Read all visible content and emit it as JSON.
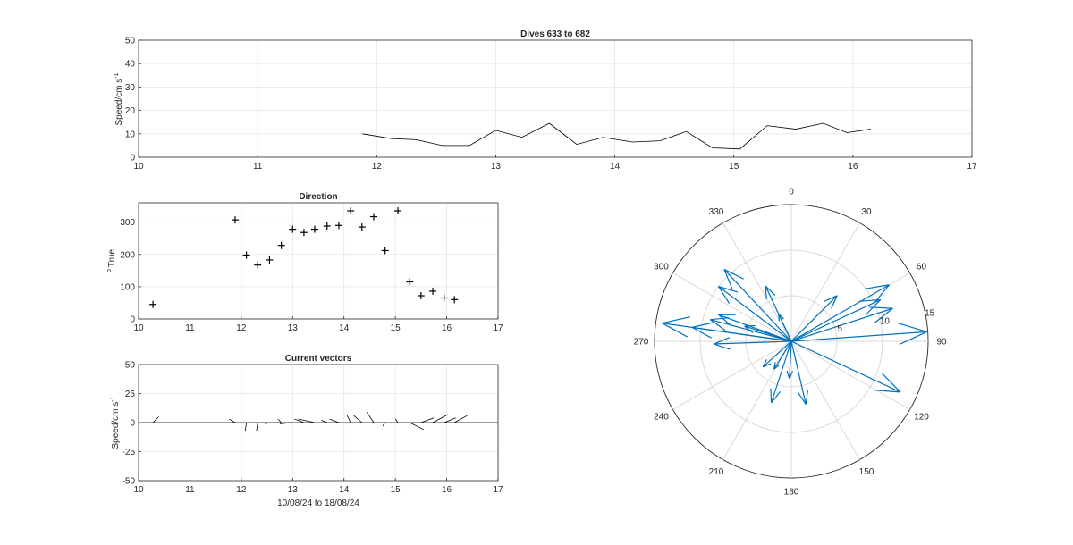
{
  "chart_data": [
    {
      "type": "line",
      "title": "Dives 633 to 682",
      "xlabel": "",
      "ylabel": "Speed/cm s",
      "ylabel_exp": "-1",
      "xlim": [
        10,
        17
      ],
      "ylim": [
        0,
        50
      ],
      "x_ticks": [
        10,
        11,
        12,
        13,
        14,
        15,
        16,
        17
      ],
      "y_ticks": [
        0,
        10,
        20,
        30,
        40,
        50
      ],
      "grid": true,
      "series": [
        {
          "x": [
            11.88,
            12.12,
            12.33,
            12.55,
            12.78,
            13.0,
            13.22,
            13.45,
            13.68,
            13.9,
            14.15,
            14.38,
            14.6,
            14.82,
            15.05,
            15.28,
            15.52,
            15.75,
            15.95,
            16.15
          ],
          "y": [
            10,
            8,
            7.5,
            5,
            5,
            11.5,
            8.5,
            14.5,
            5.5,
            8.5,
            6.5,
            7,
            11,
            4,
            3.5,
            13.5,
            12,
            14.5,
            10.5,
            12
          ]
        }
      ],
      "color": "#000000"
    },
    {
      "type": "scatter",
      "title": "Direction",
      "xlabel": "",
      "ylabel": "True",
      "ylabel_prefix": "o",
      "xlim": [
        10,
        17
      ],
      "ylim": [
        0,
        360
      ],
      "x_ticks": [
        10,
        11,
        12,
        13,
        14,
        15,
        16,
        17
      ],
      "y_ticks": [
        0,
        100,
        200,
        300
      ],
      "grid": true,
      "marker": "+",
      "series": [
        {
          "x": [
            10.28,
            11.88,
            12.1,
            12.32,
            12.55,
            12.78,
            13.0,
            13.22,
            13.43,
            13.67,
            13.9,
            14.13,
            14.35,
            14.58,
            14.8,
            15.05,
            15.28,
            15.5,
            15.73,
            15.95,
            16.15
          ],
          "y": [
            45,
            307,
            198,
            167,
            183,
            228,
            278,
            268,
            278,
            288,
            290,
            335,
            285,
            317,
            212,
            335,
            115,
            72,
            86,
            65,
            60
          ]
        }
      ]
    },
    {
      "type": "line",
      "title": "Current vectors",
      "xlabel": "10/08/24 to 18/08/24",
      "ylabel": "Speed/cm s",
      "ylabel_exp": "-1",
      "xlim": [
        10,
        17
      ],
      "ylim": [
        -50,
        50
      ],
      "x_ticks": [
        10,
        11,
        12,
        13,
        14,
        15,
        16,
        17
      ],
      "y_ticks": [
        -50,
        -25,
        0,
        25,
        50
      ],
      "grid": true,
      "vectors": [
        {
          "x": 10.28,
          "u": 5,
          "v": 5
        },
        {
          "x": 11.88,
          "u": -5,
          "v": 3
        },
        {
          "x": 12.1,
          "u": -1,
          "v": -7
        },
        {
          "x": 12.32,
          "u": -1,
          "v": -7
        },
        {
          "x": 12.55,
          "u": -4,
          "v": -1
        },
        {
          "x": 12.78,
          "u": -3,
          "v": 3
        },
        {
          "x": 13.0,
          "u": -11,
          "v": -1
        },
        {
          "x": 13.22,
          "u": -8,
          "v": 3
        },
        {
          "x": 13.43,
          "u": -14,
          "v": 3
        },
        {
          "x": 13.67,
          "u": -5,
          "v": 2
        },
        {
          "x": 13.9,
          "u": -8,
          "v": 3
        },
        {
          "x": 14.13,
          "u": -3,
          "v": 6
        },
        {
          "x": 14.35,
          "u": -7,
          "v": 6
        },
        {
          "x": 14.58,
          "u": -6,
          "v": 9
        },
        {
          "x": 14.8,
          "u": -2,
          "v": -3
        },
        {
          "x": 15.05,
          "u": -2,
          "v": 3
        },
        {
          "x": 15.28,
          "u": 12,
          "v": -6
        },
        {
          "x": 15.5,
          "u": 11,
          "v": 4
        },
        {
          "x": 15.73,
          "u": 13,
          "v": 7
        },
        {
          "x": 15.95,
          "u": 10,
          "v": 4
        },
        {
          "x": 16.15,
          "u": 11,
          "v": 6
        }
      ],
      "color": "#000000"
    },
    {
      "type": "polar-compass",
      "title": "",
      "theta_direction": "clockwise",
      "theta_zero": "top",
      "theta_ticks": [
        0,
        30,
        60,
        90,
        120,
        150,
        180,
        210,
        240,
        270,
        300,
        330
      ],
      "r_ticks": [
        5,
        10,
        15
      ],
      "rlim": [
        0,
        15
      ],
      "r_tick_angle": 80,
      "color": "#0072BD",
      "vectors": [
        {
          "dir": 45,
          "speed": 7.1
        },
        {
          "dir": 307,
          "speed": 10.0
        },
        {
          "dir": 198,
          "speed": 7.1
        },
        {
          "dir": 167,
          "speed": 7.1
        },
        {
          "dir": 183,
          "speed": 4.1
        },
        {
          "dir": 228,
          "speed": 4.2
        },
        {
          "dir": 278,
          "speed": 11.0
        },
        {
          "dir": 268,
          "speed": 8.5
        },
        {
          "dir": 278,
          "speed": 14.3
        },
        {
          "dir": 288,
          "speed": 5.4
        },
        {
          "dir": 290,
          "speed": 8.5
        },
        {
          "dir": 335,
          "speed": 6.7
        },
        {
          "dir": 285,
          "speed": 9.2
        },
        {
          "dir": 317,
          "speed": 10.8
        },
        {
          "dir": 212,
          "speed": 3.6
        },
        {
          "dir": 335,
          "speed": 3.3
        },
        {
          "dir": 115,
          "speed": 13.2
        },
        {
          "dir": 72,
          "speed": 11.7
        },
        {
          "dir": 86,
          "speed": 14.9
        },
        {
          "dir": 65,
          "speed": 10.8
        },
        {
          "dir": 60,
          "speed": 12.4
        }
      ]
    }
  ]
}
